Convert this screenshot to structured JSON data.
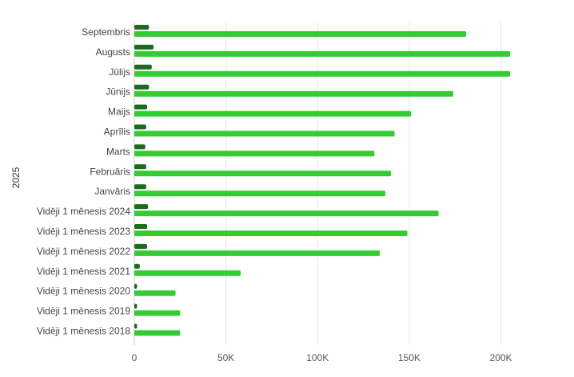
{
  "chart_data": {
    "type": "bar",
    "orientation": "horizontal",
    "ylabel": "2025",
    "categories": [
      "Septembris",
      "Augusts",
      "Jūlijs",
      "Jūnijs",
      "Maijs",
      "Aprīlis",
      "Marts",
      "Februāris",
      "Janvāris",
      "Vidēji 1 mēnesis 2024",
      "Vidēji 1 mēnesis 2023",
      "Vidēji 1 mēnesis 2022",
      "Vidēji 1 mēnesis 2021",
      "Vidēji 1 mēnesis 2020",
      "Vidēji 1 mēnesis 2019",
      "Vidēji 1 mēnesis 2018"
    ],
    "series": [
      {
        "color": "#1a6b1a",
        "values": [
          8000,
          10500,
          9500,
          8000,
          7000,
          6500,
          6000,
          6500,
          6500,
          7500,
          7000,
          7000,
          3000,
          1500,
          1500,
          1500
        ]
      },
      {
        "color": "#33cc33",
        "values": [
          181000,
          205000,
          205000,
          174000,
          151000,
          142000,
          131000,
          140000,
          137000,
          166000,
          149000,
          134000,
          58000,
          22500,
          25000,
          25000
        ]
      }
    ],
    "xlim": [
      0,
      205000
    ],
    "xticks": [
      0,
      50000,
      100000,
      150000,
      200000
    ],
    "xtick_labels": [
      "0",
      "50K",
      "100K",
      "150K",
      "200K"
    ],
    "grid": true,
    "legend": "none"
  }
}
